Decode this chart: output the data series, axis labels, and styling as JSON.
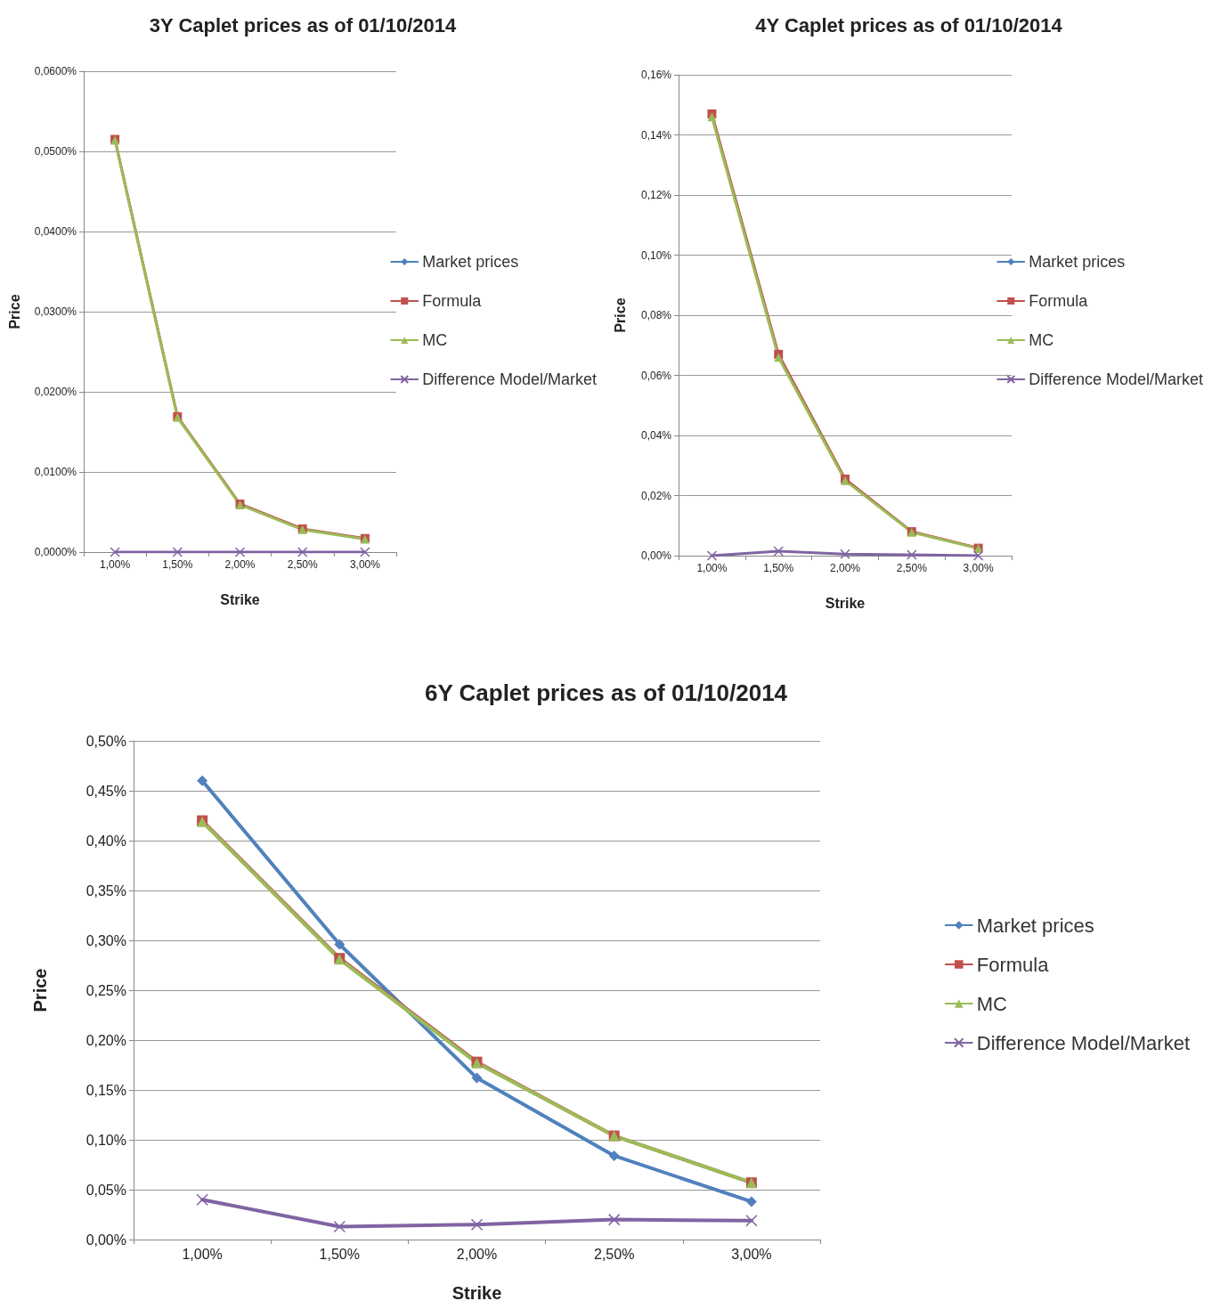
{
  "chart_data": [
    {
      "type": "line",
      "title": "3Y Caplet prices as of 01/10/2014",
      "xlabel": "Strike",
      "ylabel": "Price",
      "categories": [
        "1,00%",
        "1,50%",
        "2,00%",
        "2,50%",
        "3,00%"
      ],
      "series": [
        {
          "name": "Market prices",
          "color": "#4f81bd",
          "marker": "diamond",
          "values": [
            null,
            null,
            null,
            null,
            null
          ]
        },
        {
          "name": "Formula",
          "color": "#c0504d",
          "marker": "square",
          "values": [
            0.0515,
            0.0169,
            0.006,
            0.0029,
            0.0017
          ]
        },
        {
          "name": "MC",
          "color": "#9bbb59",
          "marker": "triangle",
          "values": [
            0.0514,
            0.0168,
            0.0059,
            0.0028,
            0.0016
          ]
        },
        {
          "name": "Difference Model/Market",
          "color": "#8064a2",
          "marker": "cross",
          "values": [
            0,
            0,
            0,
            0,
            0
          ]
        }
      ],
      "ylim": [
        0,
        0.06
      ],
      "yticks": [
        {
          "value": 0,
          "label": "0,0000%"
        },
        {
          "value": 0.01,
          "label": "0,0100%"
        },
        {
          "value": 0.02,
          "label": "0,0200%"
        },
        {
          "value": 0.03,
          "label": "0,0300%"
        },
        {
          "value": 0.04,
          "label": "0,0400%"
        },
        {
          "value": 0.05,
          "label": "0,0500%"
        },
        {
          "value": 0.06,
          "label": "0,0600%"
        }
      ],
      "grid": "y",
      "legend": "right"
    },
    {
      "type": "line",
      "title": "4Y Caplet prices as of 01/10/2014",
      "xlabel": "Strike",
      "ylabel": "Price",
      "categories": [
        "1,00%",
        "1,50%",
        "2,00%",
        "2,50%",
        "3,00%"
      ],
      "series": [
        {
          "name": "Market prices",
          "color": "#4f81bd",
          "marker": "diamond",
          "values": [
            null,
            null,
            null,
            null,
            null
          ]
        },
        {
          "name": "Formula",
          "color": "#c0504d",
          "marker": "square",
          "values": [
            0.147,
            0.067,
            0.0255,
            0.008,
            0.0025
          ]
        },
        {
          "name": "MC",
          "color": "#9bbb59",
          "marker": "triangle",
          "values": [
            0.146,
            0.066,
            0.025,
            0.0078,
            0.0024
          ]
        },
        {
          "name": "Difference Model/Market",
          "color": "#8064a2",
          "marker": "cross",
          "values": [
            0,
            0.0015,
            0.0005,
            0.0003,
            0
          ]
        }
      ],
      "ylim": [
        0,
        0.16
      ],
      "yticks": [
        {
          "value": 0,
          "label": "0,00%"
        },
        {
          "value": 0.02,
          "label": "0,02%"
        },
        {
          "value": 0.04,
          "label": "0,04%"
        },
        {
          "value": 0.06,
          "label": "0,06%"
        },
        {
          "value": 0.08,
          "label": "0,08%"
        },
        {
          "value": 0.1,
          "label": "0,10%"
        },
        {
          "value": 0.12,
          "label": "0,12%"
        },
        {
          "value": 0.14,
          "label": "0,14%"
        },
        {
          "value": 0.16,
          "label": "0,16%"
        }
      ],
      "grid": "y",
      "legend": "right"
    },
    {
      "type": "line",
      "title": "6Y Caplet prices as of 01/10/2014",
      "xlabel": "Strike",
      "ylabel": "Price",
      "categories": [
        "1,00%",
        "1,50%",
        "2,00%",
        "2,50%",
        "3,00%"
      ],
      "series": [
        {
          "name": "Market prices",
          "color": "#4f81bd",
          "marker": "diamond",
          "values": [
            0.46,
            0.296,
            0.162,
            0.084,
            0.038
          ]
        },
        {
          "name": "Formula",
          "color": "#c0504d",
          "marker": "square",
          "values": [
            0.42,
            0.282,
            0.178,
            0.104,
            0.057
          ]
        },
        {
          "name": "MC",
          "color": "#9bbb59",
          "marker": "triangle",
          "values": [
            0.419,
            0.281,
            0.177,
            0.104,
            0.057
          ]
        },
        {
          "name": "Difference Model/Market",
          "color": "#8064a2",
          "marker": "cross",
          "values": [
            0.04,
            0.013,
            0.015,
            0.02,
            0.019
          ]
        }
      ],
      "ylim": [
        0,
        0.5
      ],
      "yticks": [
        {
          "value": 0,
          "label": "0,00%"
        },
        {
          "value": 0.05,
          "label": "0,05%"
        },
        {
          "value": 0.1,
          "label": "0,10%"
        },
        {
          "value": 0.15,
          "label": "0,15%"
        },
        {
          "value": 0.2,
          "label": "0,20%"
        },
        {
          "value": 0.25,
          "label": "0,25%"
        },
        {
          "value": 0.3,
          "label": "0,30%"
        },
        {
          "value": 0.35,
          "label": "0,35%"
        },
        {
          "value": 0.4,
          "label": "0,40%"
        },
        {
          "value": 0.45,
          "label": "0,45%"
        },
        {
          "value": 0.5,
          "label": "0,50%"
        }
      ],
      "grid": "y",
      "legend": "right"
    }
  ]
}
